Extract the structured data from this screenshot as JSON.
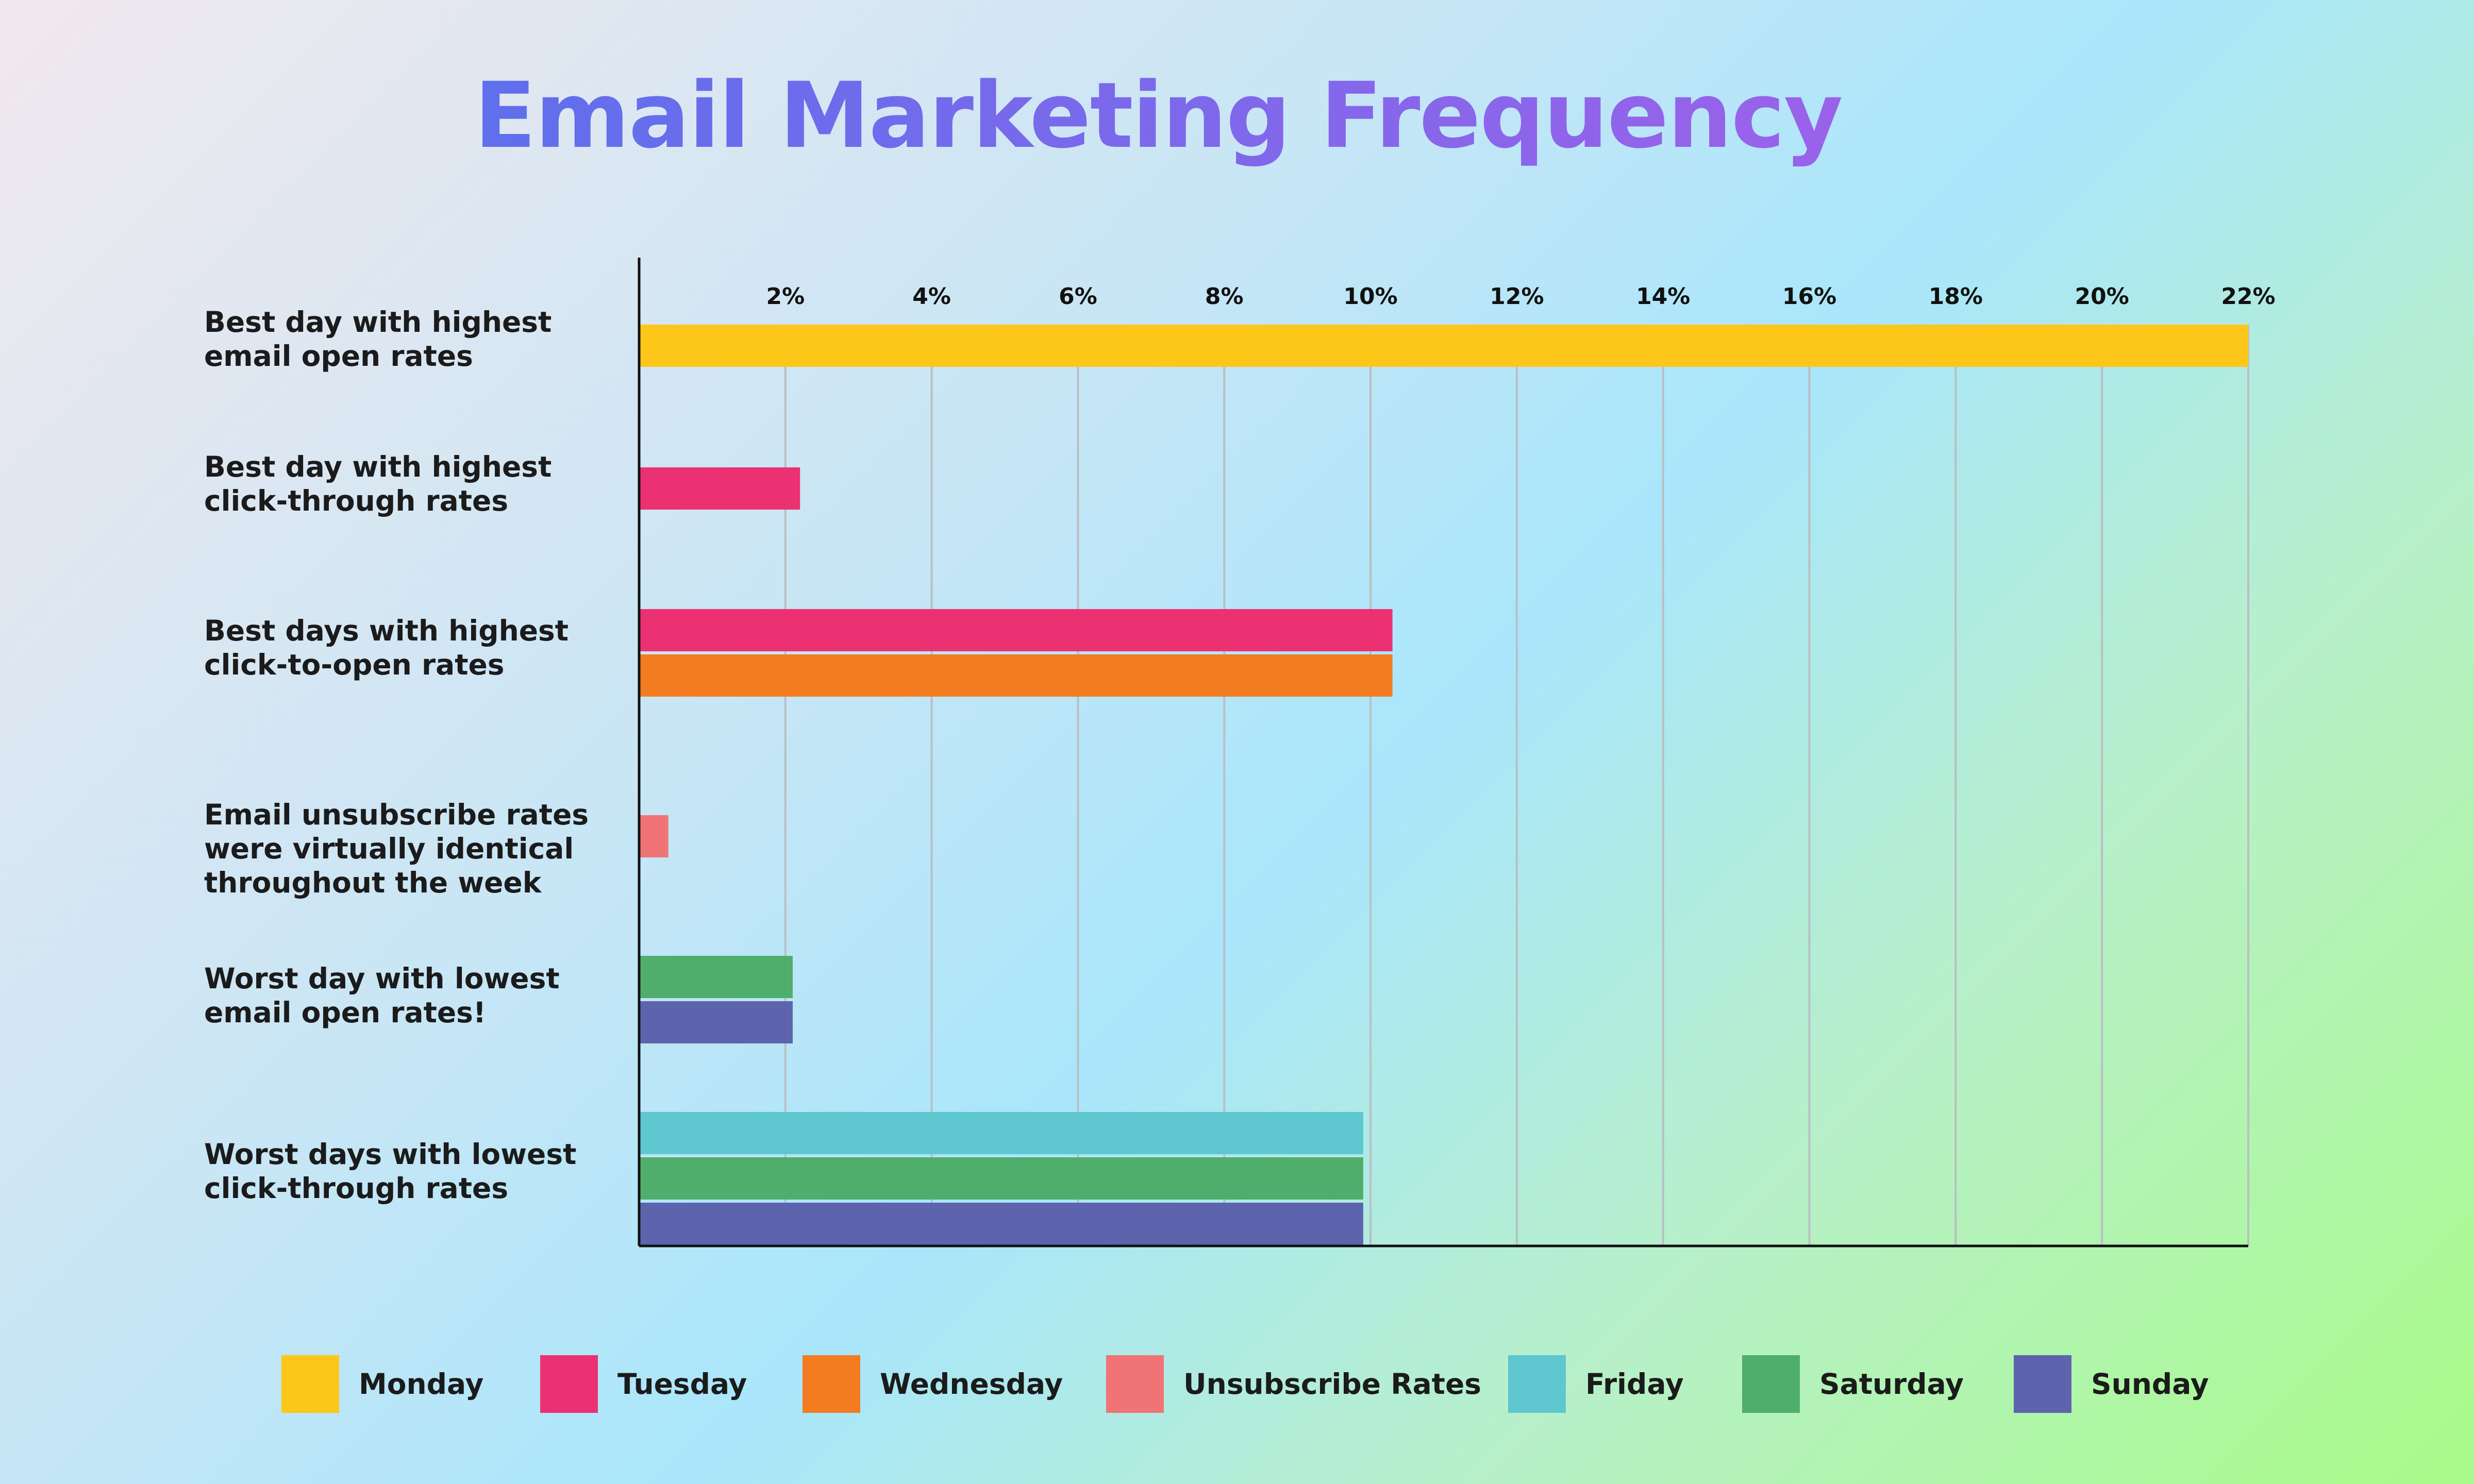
{
  "colors": {
    "monday": "#fdc719",
    "tuesday": "#ec3173",
    "wednesday": "#f37b20",
    "unsubscribe": "#f07476",
    "friday": "#5fc7cf",
    "saturday": "#4fae6c",
    "sunday": "#5d64ad",
    "grid": "#b9bfc3",
    "axis": "#111111"
  },
  "chart_data": {
    "type": "bar",
    "orientation": "horizontal",
    "title": "Email Marketing Frequency",
    "xlabel": "",
    "ylabel": "",
    "xlim": [
      0,
      22
    ],
    "grid": true,
    "ticks": [
      {
        "value": 2,
        "label": "2%"
      },
      {
        "value": 4,
        "label": "4%"
      },
      {
        "value": 6,
        "label": "6%"
      },
      {
        "value": 8,
        "label": "8%"
      },
      {
        "value": 10,
        "label": "10%"
      },
      {
        "value": 12,
        "label": "12%"
      },
      {
        "value": 14,
        "label": "14%"
      },
      {
        "value": 16,
        "label": "16%"
      },
      {
        "value": 18,
        "label": "18%"
      },
      {
        "value": 20,
        "label": "20%"
      },
      {
        "value": 22,
        "label": "22%"
      }
    ],
    "categories": [
      "Best day with highest\nemail open rates",
      "Best day with highest\nclick-through rates",
      "Best days with highest\nclick-to-open rates",
      "Email unsubscribe rates\nwere virtually identical\nthroughout the week",
      "Worst day with lowest\nemail open rates!",
      "Worst days with lowest\nclick-through rates"
    ],
    "groups": [
      {
        "category": 0,
        "bars": [
          {
            "series": "Monday",
            "value": 22
          }
        ]
      },
      {
        "category": 1,
        "bars": [
          {
            "series": "Tuesday",
            "value": 2.2
          }
        ]
      },
      {
        "category": 2,
        "bars": [
          {
            "series": "Tuesday",
            "value": 10.3
          },
          {
            "series": "Wednesday",
            "value": 10.3
          }
        ]
      },
      {
        "category": 3,
        "bars": [
          {
            "series": "Unsubscribe Rates",
            "value": 0.4
          }
        ]
      },
      {
        "category": 4,
        "bars": [
          {
            "series": "Saturday",
            "value": 2.1
          },
          {
            "series": "Sunday",
            "value": 2.1
          }
        ]
      },
      {
        "category": 5,
        "bars": [
          {
            "series": "Friday",
            "value": 9.9
          },
          {
            "series": "Saturday",
            "value": 9.9
          },
          {
            "series": "Sunday",
            "value": 9.9
          }
        ]
      }
    ],
    "legend_position": "bottom",
    "legend": [
      {
        "name": "Monday",
        "color_key": "monday"
      },
      {
        "name": "Tuesday",
        "color_key": "tuesday"
      },
      {
        "name": "Wednesday",
        "color_key": "wednesday"
      },
      {
        "name": "Unsubscribe Rates",
        "color_key": "unsubscribe"
      },
      {
        "name": "Friday",
        "color_key": "friday"
      },
      {
        "name": "Saturday",
        "color_key": "saturday"
      },
      {
        "name": "Sunday",
        "color_key": "sunday"
      }
    ]
  }
}
